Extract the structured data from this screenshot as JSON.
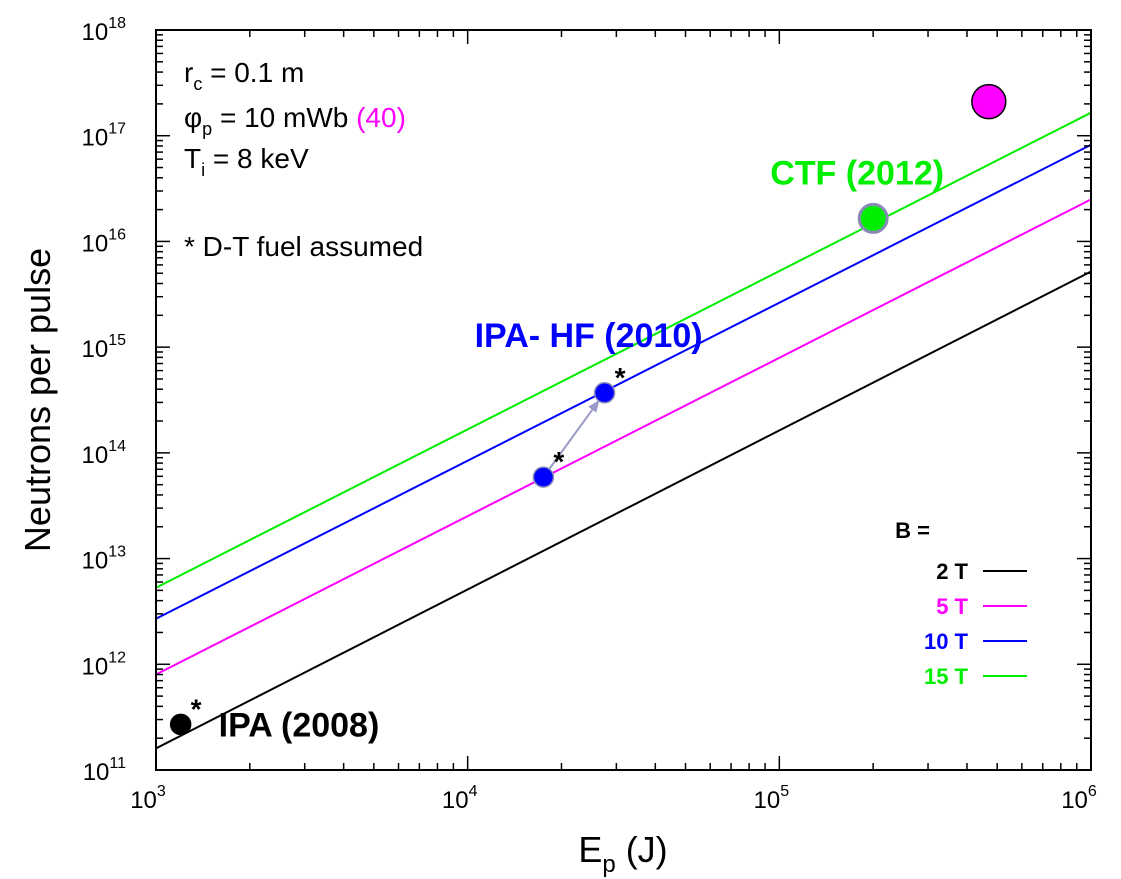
{
  "chart_data": {
    "type": "line",
    "x_scale": "log",
    "y_scale": "log",
    "xlim": [
      1000,
      1000000
    ],
    "ylim": [
      100000000000,
      1000000000000000000
    ],
    "xlabel": {
      "main": "E",
      "sub": "p",
      "unit": " (J)"
    },
    "ylabel": "Neutrons per pulse",
    "x_ticks": [
      {
        "value": 1000,
        "base": "10",
        "exp": "3"
      },
      {
        "value": 10000,
        "base": "10",
        "exp": "4"
      },
      {
        "value": 100000,
        "base": "10",
        "exp": "5"
      },
      {
        "value": 1000000,
        "base": "10",
        "exp": "6"
      }
    ],
    "y_ticks": [
      {
        "value": 100000000000.0,
        "base": "10",
        "exp": "11"
      },
      {
        "value": 1000000000000.0,
        "base": "10",
        "exp": "12"
      },
      {
        "value": 10000000000000.0,
        "base": "10",
        "exp": "13"
      },
      {
        "value": 100000000000000.0,
        "base": "10",
        "exp": "14"
      },
      {
        "value": 1000000000000000.0,
        "base": "10",
        "exp": "15"
      },
      {
        "value": 1e+16,
        "base": "10",
        "exp": "16"
      },
      {
        "value": 1e+17,
        "base": "10",
        "exp": "17"
      },
      {
        "value": 1e+18,
        "base": "10",
        "exp": "18"
      }
    ],
    "grid": false,
    "legend": {
      "position": "bottom-right",
      "title": "B =",
      "entries": [
        {
          "label": "2 T",
          "color": "#000000"
        },
        {
          "label": "5 T",
          "color": "#ff00ff"
        },
        {
          "label": "10 T",
          "color": "#0000ff"
        },
        {
          "label": "15 T",
          "color": "#00ee00"
        }
      ]
    },
    "series": [
      {
        "name": "2 T",
        "color": "#000000",
        "x": [
          1000,
          1000000
        ],
        "y": [
          160000000000.0,
          5200000000000000.0
        ]
      },
      {
        "name": "5 T",
        "color": "#ff00ff",
        "x": [
          1000,
          1000000
        ],
        "y": [
          800000000000.0,
          2.5e+16
        ]
      },
      {
        "name": "10 T",
        "color": "#0000ff",
        "x": [
          1000,
          1000000
        ],
        "y": [
          2700000000000.0,
          8.2e+16
        ]
      },
      {
        "name": "15 T",
        "color": "#00ee00",
        "x": [
          1000,
          1000000
        ],
        "y": [
          5300000000000.0,
          1.65e+17
        ]
      }
    ],
    "points": [
      {
        "id": "ipa",
        "x": 1200,
        "y": 270000000000.0,
        "color": "#000000",
        "r": 10,
        "star": "*",
        "label": "IPA (2008)",
        "label_color": "#000000"
      },
      {
        "id": "ipa-hf-low",
        "x": 17500,
        "y": 59000000000000.0,
        "color": "#0000ff",
        "r": 10,
        "star": "*",
        "label": "",
        "label_color": "#0000ff"
      },
      {
        "id": "ipa-hf",
        "x": 27500,
        "y": 370000000000000.0,
        "color": "#0000ff",
        "r": 10,
        "star": "*",
        "label": "IPA- HF (2010)",
        "label_color": "#0000ff"
      },
      {
        "id": "ctf",
        "x": 200000,
        "y": 1.65e+16,
        "color": "#00ee00",
        "r": 14,
        "star": "",
        "label": "CTF (2012)",
        "label_color": "#00ee00"
      },
      {
        "id": "magenta-point",
        "x": 470000,
        "y": 2.1e+17,
        "color": "#ff00ff",
        "r": 17,
        "star": "",
        "label": "",
        "label_color": "#ff00ff"
      }
    ],
    "arrow": {
      "from": "ipa-hf-low",
      "to": "ipa-hf",
      "color": "#9a9ac8"
    },
    "annotations": {
      "rc": {
        "sym": "r",
        "sub": "c",
        "rest": " = 0.1 m"
      },
      "phi": {
        "sym": "φ",
        "sub": "p",
        "rest": " = 10 mWb ",
        "extra": "(40)",
        "extra_color": "#ff00ff"
      },
      "ti": {
        "sym": "T",
        "sub": "i",
        "rest": " = 8 keV"
      },
      "fuel": "* D-T fuel assumed"
    }
  }
}
